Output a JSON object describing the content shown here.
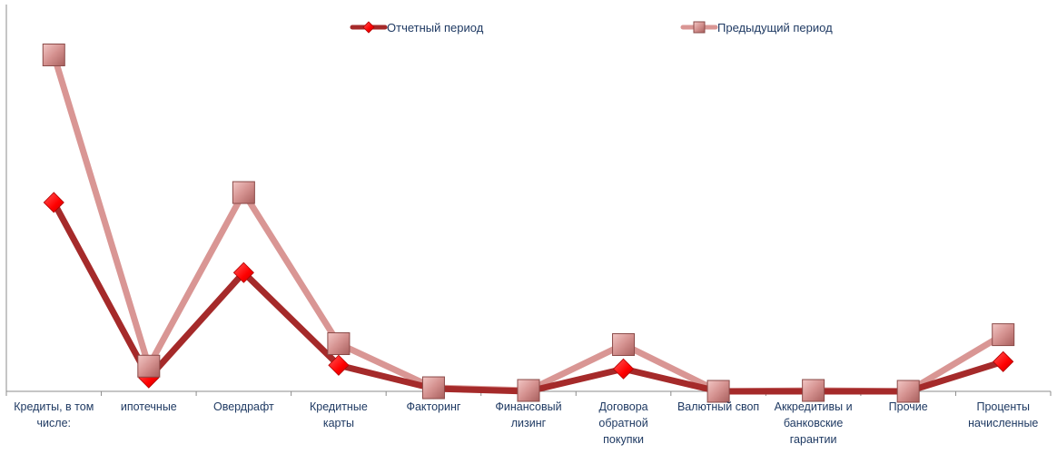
{
  "chart_data": {
    "type": "line",
    "title": "",
    "xlabel": "",
    "ylabel": "",
    "categories": [
      "Кредиты, в том числе:",
      "ипотечные",
      "Овердрафт",
      "Кредитные карты",
      "Факторинг",
      "Финансовый лизинг",
      "Договора обратной покупки",
      "Валютный своп",
      "Аккредитивы и банковские гарантии",
      "Прочие",
      "Проценты начисленные"
    ],
    "series": [
      {
        "name": "Отчетный период",
        "color": "#a52a2a",
        "marker": "diamond",
        "marker_color": "#ff0000",
        "values": [
          210,
          15,
          132,
          29,
          3,
          0,
          25,
          0,
          0,
          0,
          33
        ]
      },
      {
        "name": "Предыдущий период",
        "color": "#d99694",
        "marker": "square",
        "marker_color": "#d99694",
        "values": [
          374,
          28,
          221,
          53,
          4,
          1,
          52,
          0,
          1,
          0,
          63
        ]
      }
    ],
    "ylim": [
      0,
      430
    ],
    "y_axis_ticks_shown": false,
    "grid": false,
    "legend_position": "top"
  }
}
